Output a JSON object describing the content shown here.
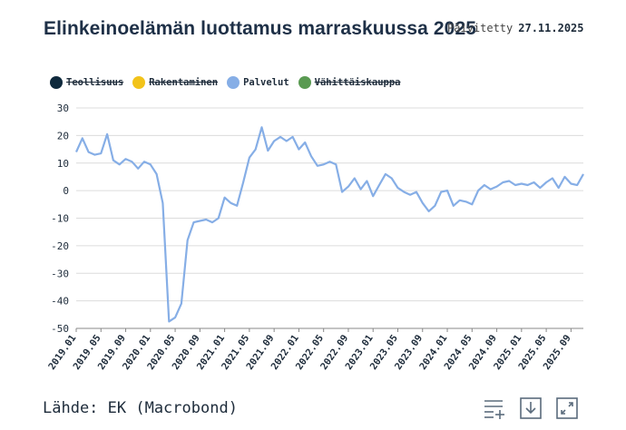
{
  "header": {
    "title": "Elinkeinoelämän luottamus marraskuussa 2025",
    "updated_label": "Päivitetty",
    "updated_date": "27.11.2025"
  },
  "legend": [
    {
      "label": "Teollisuus",
      "color": "#0f2a3d",
      "active": false
    },
    {
      "label": "Rakentaminen",
      "color": "#f2c31a",
      "active": false
    },
    {
      "label": "Palvelut",
      "color": "#86aee6",
      "active": true
    },
    {
      "label": "Vähittäiskauppa",
      "color": "#5a9a52",
      "active": false
    }
  ],
  "source": "Lähde: EK (Macrobond)",
  "toolbar": {
    "icons": [
      "list-add-icon",
      "download-icon",
      "fullscreen-icon"
    ]
  },
  "chart_data": {
    "type": "line",
    "title": "Elinkeinoelämän luottamus marraskuussa 2025",
    "ylim": [
      -50,
      30
    ],
    "yticks": [
      30,
      20,
      10,
      0,
      -10,
      -20,
      -30,
      -40,
      -50
    ],
    "grid": true,
    "x_start": "2019.01",
    "x_end": "2025.11",
    "xtick_labels": [
      "2019.01",
      "2019.05",
      "2019.09",
      "2020.01",
      "2020.05",
      "2020.09",
      "2021.01",
      "2021.05",
      "2021.09",
      "2022.01",
      "2022.05",
      "2022.09",
      "2023.01",
      "2023.05",
      "2023.09",
      "2024.01",
      "2024.05",
      "2024.09",
      "2025.01",
      "2025.05",
      "2025.09"
    ],
    "series": [
      {
        "name": "Palvelut",
        "color": "#86aee6",
        "values": [
          14,
          19,
          14,
          13,
          13.5,
          20.5,
          11,
          9.5,
          11.5,
          10.5,
          8,
          10.5,
          9.5,
          6,
          -4.5,
          -47.5,
          -46,
          -41,
          -18,
          -11.5,
          -11,
          -10.5,
          -11.5,
          -10,
          -2.5,
          -4.5,
          -5.5,
          3,
          12,
          15,
          23,
          14.5,
          18,
          19.5,
          18,
          19.5,
          15,
          17.5,
          12.5,
          9,
          9.5,
          10.5,
          9.5,
          -0.5,
          1.5,
          4.5,
          0.5,
          3.5,
          -2,
          2,
          6,
          4.5,
          1,
          -0.5,
          -1.5,
          -0.5,
          -4.5,
          -7.5,
          -5.5,
          -0.5,
          0,
          -5.5,
          -3.5,
          -4,
          -5,
          0,
          2,
          0.5,
          1.5,
          3,
          3.5,
          2,
          2.5,
          2,
          3,
          1,
          3,
          4.5,
          1,
          5,
          2.5,
          2,
          6
        ]
      }
    ]
  }
}
